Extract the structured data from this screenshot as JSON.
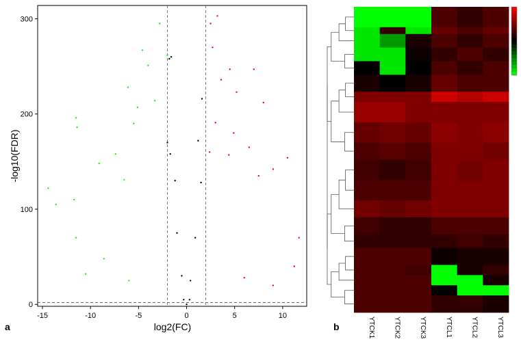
{
  "panel_labels": {
    "a": "a",
    "b": "b"
  },
  "colors": {
    "up": "#ff0000",
    "down": "#00ff00",
    "not_significant": "#000000",
    "threshold_line": "#555555",
    "heat_high": "#ff0000",
    "heat_mid": "#000000",
    "heat_low": "#00ff00"
  },
  "chart_data": [
    {
      "type": "scatter",
      "panel": "a",
      "xlabel": "log2(FC)",
      "ylabel": "-log10(FDR)",
      "xlim": [
        -15.5,
        12.5
      ],
      "ylim": [
        -2,
        314
      ],
      "x_ticks": [
        -15,
        -10,
        -5,
        0,
        5,
        10
      ],
      "y_ticks": [
        0,
        100,
        200,
        300
      ],
      "grid": false,
      "legend": "none",
      "threshold_lines": {
        "x": [
          -2,
          2
        ],
        "y": 2
      },
      "series": [
        {
          "color_key": "up",
          "points": [
            [
              3.2,
              303
            ],
            [
              2.5,
              295
            ],
            [
              2.7,
              270
            ],
            [
              4.5,
              247
            ],
            [
              3.6,
              236
            ],
            [
              5.2,
              223
            ],
            [
              7.0,
              247
            ],
            [
              8.0,
              212
            ],
            [
              3.0,
              191
            ],
            [
              4.9,
              180
            ],
            [
              6.5,
              165
            ],
            [
              2.4,
              160
            ],
            [
              4.4,
              157
            ],
            [
              10.5,
              154
            ],
            [
              9.0,
              142
            ],
            [
              7.5,
              135
            ],
            [
              11.7,
              70
            ],
            [
              11.2,
              40
            ],
            [
              9.0,
              20
            ],
            [
              6.0,
              28
            ]
          ]
        },
        {
          "color_key": "down",
          "points": [
            [
              -2.8,
              295
            ],
            [
              -2.0,
              262
            ],
            [
              -4.6,
              267
            ],
            [
              -4.0,
              251
            ],
            [
              -6.1,
              228
            ],
            [
              -3.3,
              214
            ],
            [
              -5.1,
              207
            ],
            [
              -11.5,
              196
            ],
            [
              -11.4,
              186
            ],
            [
              -5.5,
              190
            ],
            [
              -7.4,
              158
            ],
            [
              -9.1,
              148
            ],
            [
              -6.5,
              131
            ],
            [
              -14.4,
              122
            ],
            [
              -11.7,
              110
            ],
            [
              -13.6,
              105
            ],
            [
              -11.5,
              70
            ],
            [
              -8.6,
              48
            ],
            [
              -10.5,
              32
            ],
            [
              -6.0,
              25
            ]
          ]
        },
        {
          "color_key": "not_significant",
          "points": [
            [
              -1.8,
              258
            ],
            [
              -1.6,
              260
            ],
            [
              1.6,
              216
            ],
            [
              -2.0,
              170
            ],
            [
              -1.7,
              158
            ],
            [
              1.2,
              172
            ],
            [
              -1.2,
              130
            ],
            [
              1.5,
              128
            ],
            [
              -1.0,
              75
            ],
            [
              0.9,
              70
            ],
            [
              -0.5,
              30
            ],
            [
              0.4,
              25
            ],
            [
              0,
              0
            ],
            [
              -0.3,
              5
            ],
            [
              0.3,
              5
            ]
          ]
        }
      ]
    },
    {
      "type": "heatmap",
      "panel": "b",
      "columns": [
        "YTCK1",
        "YTCK2",
        "YTCK3",
        "YTCL1",
        "YTCL2",
        "YTCL3"
      ],
      "color_scale": "green-black-red",
      "legend": "top-right",
      "row_clusters": [
        {
          "weight": 6,
          "values": [
            -1.0,
            -1.0,
            -1.0,
            0.3,
            0.2,
            0.3
          ]
        },
        {
          "weight": 2,
          "values": [
            -0.9,
            0.2,
            -0.9,
            0.4,
            0.3,
            0.4
          ]
        },
        {
          "weight": 4,
          "values": [
            -0.9,
            -0.6,
            0.1,
            0.3,
            0.2,
            0.3
          ]
        },
        {
          "weight": 4,
          "values": [
            -0.9,
            -0.9,
            0.05,
            0.2,
            0.3,
            0.2
          ]
        },
        {
          "weight": 4,
          "values": [
            0.0,
            -0.9,
            0.0,
            0.3,
            0.2,
            0.3
          ]
        },
        {
          "weight": 5,
          "values": [
            0.1,
            0.0,
            0.1,
            0.4,
            0.3,
            0.3
          ]
        },
        {
          "weight": 3,
          "values": [
            0.5,
            0.5,
            0.5,
            0.8,
            0.7,
            0.8
          ]
        },
        {
          "weight": 6,
          "values": [
            0.6,
            0.6,
            0.5,
            0.5,
            0.5,
            0.5
          ]
        },
        {
          "weight": 6,
          "values": [
            0.4,
            0.45,
            0.4,
            0.55,
            0.5,
            0.55
          ]
        },
        {
          "weight": 5,
          "values": [
            0.3,
            0.35,
            0.3,
            0.5,
            0.5,
            0.45
          ]
        },
        {
          "weight": 6,
          "values": [
            0.25,
            0.2,
            0.25,
            0.5,
            0.45,
            0.5
          ]
        },
        {
          "weight": 6,
          "values": [
            0.3,
            0.3,
            0.3,
            0.5,
            0.5,
            0.5
          ]
        },
        {
          "weight": 5,
          "values": [
            0.45,
            0.4,
            0.45,
            0.5,
            0.5,
            0.5
          ]
        },
        {
          "weight": 5,
          "values": [
            0.25,
            0.2,
            0.2,
            0.3,
            0.3,
            0.3
          ]
        },
        {
          "weight": 4,
          "values": [
            0.2,
            0.2,
            0.2,
            0.2,
            0.25,
            0.2
          ]
        },
        {
          "weight": 5,
          "values": [
            0.3,
            0.3,
            0.3,
            0.05,
            0.1,
            0.1
          ]
        },
        {
          "weight": 3,
          "values": [
            0.3,
            0.3,
            0.25,
            -1.0,
            0.1,
            0.2
          ]
        },
        {
          "weight": 3,
          "values": [
            0.3,
            0.3,
            0.3,
            -1.0,
            -1.0,
            0.1
          ]
        },
        {
          "weight": 3,
          "values": [
            0.3,
            0.3,
            0.3,
            0.0,
            -1.0,
            -1.0
          ]
        },
        {
          "weight": 5,
          "values": [
            0.3,
            0.3,
            0.3,
            0.2,
            0.2,
            0.1
          ]
        }
      ]
    }
  ]
}
